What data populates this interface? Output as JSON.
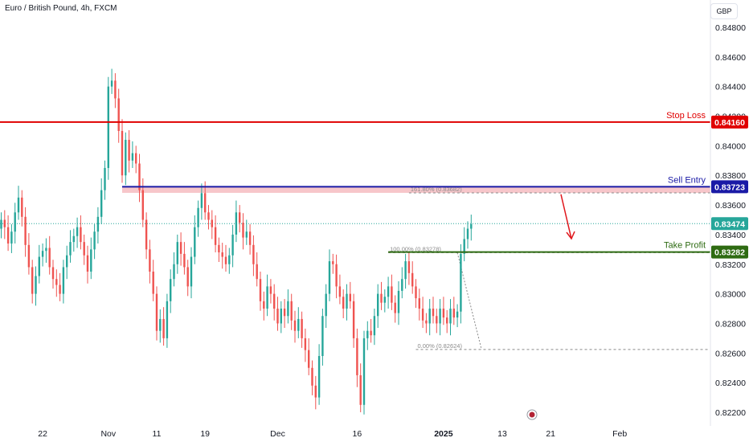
{
  "header": {
    "title": "Euro / British Pound, 4h, FXCM",
    "currency_button": "GBP"
  },
  "colors": {
    "up": "#26a69a",
    "down": "#ef5350",
    "stop_loss": "#e00000",
    "sell_entry": "#1a1aa6",
    "take_profit": "#2e6b12",
    "current": "#26a69a",
    "zone": "#f7c6ca",
    "fib": "#8a8a8a",
    "arrow": "#e0171c"
  },
  "chart_data": {
    "type": "candlestick",
    "ylim": [
      0.8217,
      0.8497
    ],
    "y_ticks": [
      "0.84800",
      "0.84600",
      "0.84400",
      "0.84200",
      "0.84000",
      "0.83800",
      "0.83600",
      "0.83400",
      "0.83200",
      "0.83000",
      "0.82800",
      "0.82600",
      "0.82400",
      "0.82200"
    ],
    "x_ticks": [
      {
        "label": "22",
        "idx": 12,
        "bold": false
      },
      {
        "label": "Nov",
        "idx": 31,
        "bold": false
      },
      {
        "label": "11",
        "idx": 45,
        "bold": false
      },
      {
        "label": "19",
        "idx": 59,
        "bold": false
      },
      {
        "label": "Dec",
        "idx": 80,
        "bold": false
      },
      {
        "label": "16",
        "idx": 103,
        "bold": false
      },
      {
        "label": "2025",
        "idx": 128,
        "bold": true
      },
      {
        "label": "13",
        "idx": 145,
        "bold": false
      },
      {
        "label": "21",
        "idx": 159,
        "bold": false
      },
      {
        "label": "Feb",
        "idx": 179,
        "bold": false
      }
    ],
    "levels": [
      {
        "name": "Stop Loss",
        "value": 0.8416,
        "tag": "0.84160",
        "key": "stop_loss"
      },
      {
        "name": "Sell Entry",
        "value": 0.83723,
        "tag": "0.83723",
        "key": "sell_entry"
      },
      {
        "name": "Take Profit",
        "value": 0.83282,
        "tag": "0.83282",
        "key": "take_profit"
      }
    ],
    "current_price": {
      "value": 0.83474,
      "tag": "0.83474"
    },
    "zone": {
      "from": 0.83682,
      "to": 0.83723
    },
    "fib_lines": [
      {
        "label": "161.80% (0.83682)",
        "value": 0.83682
      },
      {
        "label": "100.00% (0.83278)",
        "value": 0.83278
      },
      {
        "label": "0.00% (0.82624)",
        "value": 0.82624
      }
    ],
    "closes": [
      0.835,
      0.8345,
      0.8334,
      0.8342,
      0.8355,
      0.8365,
      0.8352,
      0.8333,
      0.8318,
      0.83,
      0.8312,
      0.8325,
      0.8329,
      0.8331,
      0.8318,
      0.831,
      0.8306,
      0.83,
      0.8318,
      0.8326,
      0.8335,
      0.8339,
      0.8345,
      0.8335,
      0.8326,
      0.8315,
      0.833,
      0.8342,
      0.8352,
      0.837,
      0.8385,
      0.844,
      0.8444,
      0.8432,
      0.841,
      0.838,
      0.8404,
      0.839,
      0.8395,
      0.8388,
      0.837,
      0.835,
      0.833,
      0.8315,
      0.83,
      0.8275,
      0.8283,
      0.827,
      0.8295,
      0.831,
      0.832,
      0.8335,
      0.8327,
      0.8318,
      0.8305,
      0.8325,
      0.8345,
      0.8358,
      0.8368,
      0.8355,
      0.835,
      0.8345,
      0.8333,
      0.8328,
      0.8325,
      0.832,
      0.8326,
      0.834,
      0.8355,
      0.8348,
      0.8338,
      0.8342,
      0.8333,
      0.832,
      0.831,
      0.8295,
      0.829,
      0.8305,
      0.83,
      0.829,
      0.828,
      0.829,
      0.8285,
      0.8295,
      0.8282,
      0.8275,
      0.8283,
      0.827,
      0.8262,
      0.825,
      0.8238,
      0.823,
      0.8258,
      0.8285,
      0.83,
      0.8322,
      0.832,
      0.8305,
      0.8298,
      0.829,
      0.83,
      0.8295,
      0.827,
      0.8245,
      0.8225,
      0.827,
      0.8275,
      0.8272,
      0.8285,
      0.83,
      0.8294,
      0.8298,
      0.8305,
      0.8294,
      0.8287,
      0.8302,
      0.831,
      0.8322,
      0.8314,
      0.8305,
      0.8297,
      0.829,
      0.8282,
      0.828,
      0.829,
      0.8285,
      0.828,
      0.829,
      0.8284,
      0.828,
      0.829,
      0.8284,
      0.8288,
      0.8327,
      0.8337,
      0.8344,
      0.8347
    ]
  }
}
